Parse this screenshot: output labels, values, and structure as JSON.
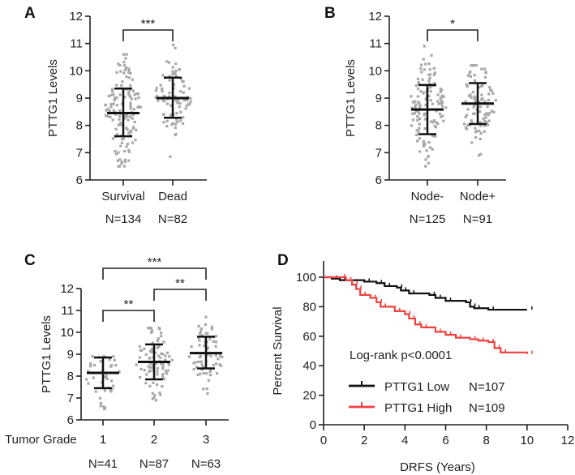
{
  "chart_data": [
    {
      "panel": "A",
      "type": "scatter",
      "ylabel": "PTTG1 Levels",
      "ylim": [
        6,
        12
      ],
      "yticks": [
        6,
        7,
        8,
        9,
        10,
        11,
        12
      ],
      "groups": [
        {
          "label": "Survival",
          "n_label": "N=134",
          "n": 134,
          "mean": 8.45,
          "sd_low": 7.6,
          "sd_high": 9.35,
          "min": 6.5,
          "max": 10.6
        },
        {
          "label": "Dead",
          "n_label": "N=82",
          "n": 82,
          "mean": 9.0,
          "sd_low": 8.28,
          "sd_high": 9.75,
          "min": 6.85,
          "max": 10.95
        }
      ],
      "comparisons": [
        {
          "from": 0,
          "to": 1,
          "label": "***"
        }
      ]
    },
    {
      "panel": "B",
      "type": "scatter",
      "ylabel": "PTTG1 Levels",
      "ylim": [
        6,
        12
      ],
      "yticks": [
        6,
        7,
        8,
        9,
        10,
        11,
        12
      ],
      "groups": [
        {
          "label": "Node-",
          "n_label": "N=125",
          "n": 125,
          "mean": 8.58,
          "sd_low": 7.68,
          "sd_high": 9.48,
          "min": 6.5,
          "max": 10.9
        },
        {
          "label": "Node+",
          "n_label": "N=91",
          "n": 91,
          "mean": 8.8,
          "sd_low": 8.05,
          "sd_high": 9.55,
          "min": 6.9,
          "max": 10.2
        }
      ],
      "comparisons": [
        {
          "from": 0,
          "to": 1,
          "label": "*"
        }
      ]
    },
    {
      "panel": "C",
      "type": "scatter",
      "ylabel": "PTTG1 Levels",
      "xlabel": "Tumor Grade",
      "ylim": [
        6,
        12
      ],
      "yticks": [
        6,
        7,
        8,
        9,
        10,
        11,
        12
      ],
      "groups": [
        {
          "label": "1",
          "n_label": "N=41",
          "n": 41,
          "mean": 8.15,
          "sd_low": 7.45,
          "sd_high": 8.85,
          "min": 6.5,
          "max": 8.9
        },
        {
          "label": "2",
          "n_label": "N=87",
          "n": 87,
          "mean": 8.65,
          "sd_low": 7.85,
          "sd_high": 9.45,
          "min": 6.9,
          "max": 10.2
        },
        {
          "label": "3",
          "n_label": "N=63",
          "n": 63,
          "mean": 9.05,
          "sd_low": 8.35,
          "sd_high": 9.8,
          "min": 7.2,
          "max": 10.7
        }
      ],
      "comparisons": [
        {
          "from": 0,
          "to": 1,
          "label": "**"
        },
        {
          "from": 1,
          "to": 2,
          "label": "**"
        },
        {
          "from": 0,
          "to": 2,
          "label": "***"
        }
      ]
    },
    {
      "panel": "D",
      "type": "line",
      "xlabel": "DRFS (Years)",
      "ylabel": "Percent Survival",
      "xlim": [
        0,
        12
      ],
      "ylim": [
        0,
        100
      ],
      "xticks": [
        0,
        2,
        4,
        6,
        8,
        10,
        12
      ],
      "yticks": [
        0,
        20,
        40,
        60,
        80,
        100
      ],
      "annotation": "Log-rank p<0.0001",
      "series": [
        {
          "name": "PTTG1 Low",
          "n_label": "N=107",
          "color": "#111111",
          "steps": [
            [
              0,
              100
            ],
            [
              0.4,
              99
            ],
            [
              0.8,
              98
            ],
            [
              2,
              97
            ],
            [
              2.6,
              96
            ],
            [
              3,
              94
            ],
            [
              3.6,
              93
            ],
            [
              3.8,
              91
            ],
            [
              4.2,
              89
            ],
            [
              5.2,
              88
            ],
            [
              5.5,
              86
            ],
            [
              6,
              84
            ],
            [
              7,
              83
            ],
            [
              7.2,
              80
            ],
            [
              7.4,
              79
            ],
            [
              8.1,
              78
            ],
            [
              10,
              78
            ]
          ]
        },
        {
          "name": "PTTG1 High",
          "n_label": "N=109",
          "color": "#f04040",
          "steps": [
            [
              0,
              100
            ],
            [
              0.8,
              100
            ],
            [
              1.1,
              98
            ],
            [
              1.4,
              95
            ],
            [
              1.6,
              92
            ],
            [
              1.8,
              88
            ],
            [
              2.3,
              86
            ],
            [
              2.6,
              83
            ],
            [
              2.8,
              80
            ],
            [
              3.5,
              77
            ],
            [
              4,
              75
            ],
            [
              4.2,
              72
            ],
            [
              4.5,
              68
            ],
            [
              4.8,
              66
            ],
            [
              5.5,
              63
            ],
            [
              6,
              61
            ],
            [
              6.5,
              59
            ],
            [
              7.2,
              58
            ],
            [
              7.6,
              57
            ],
            [
              8.1,
              56
            ],
            [
              8.4,
              52
            ],
            [
              8.7,
              49
            ],
            [
              10,
              48
            ]
          ]
        }
      ]
    }
  ]
}
